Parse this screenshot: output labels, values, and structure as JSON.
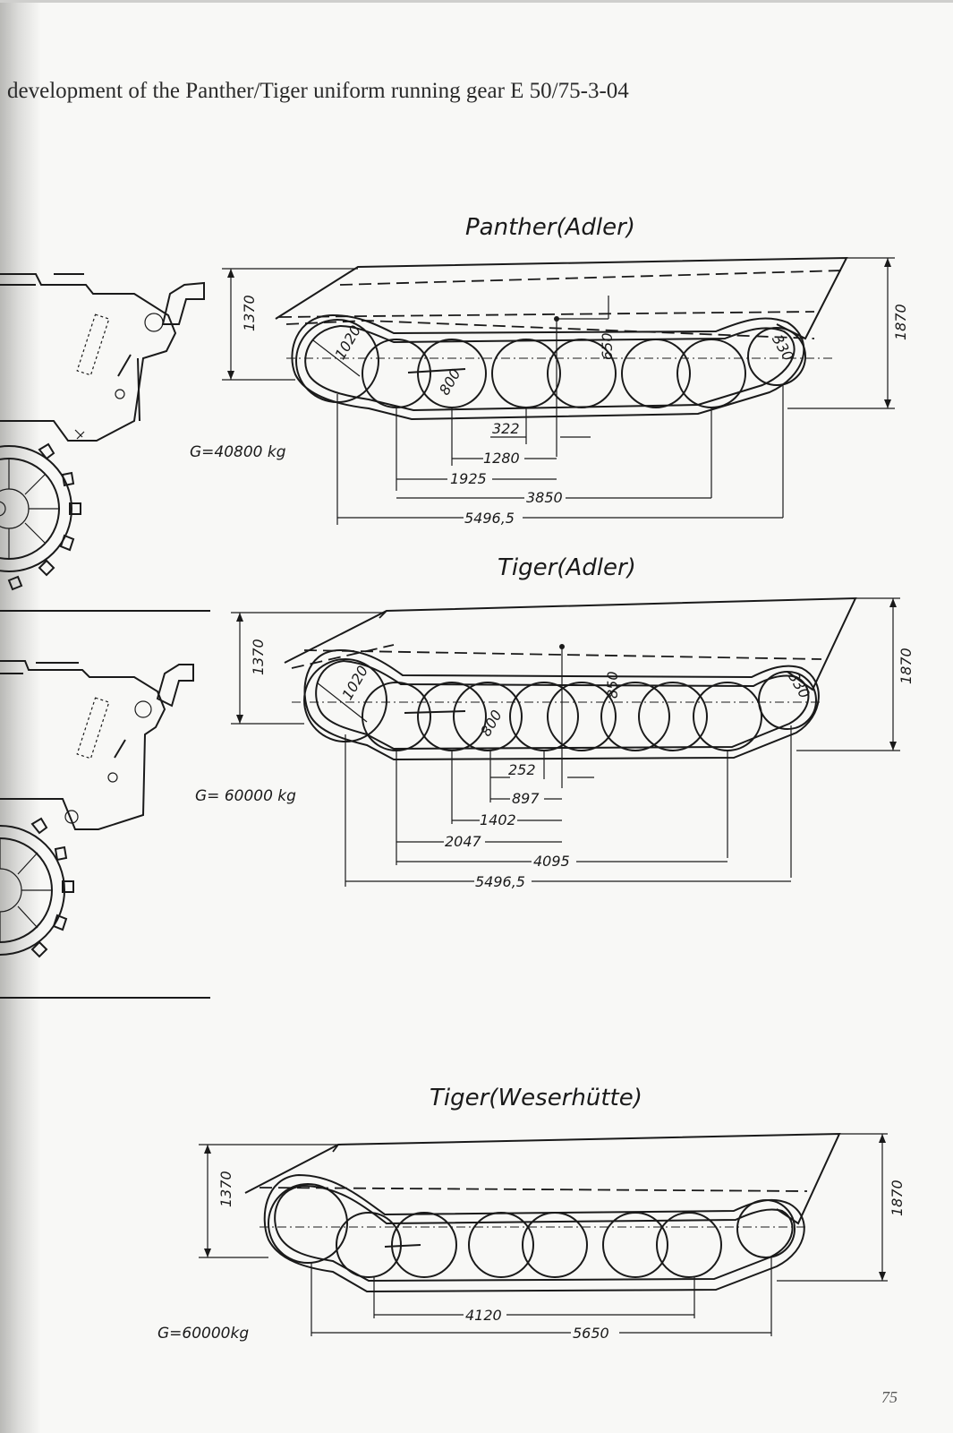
{
  "caption": "development of the Panther/Tiger uniform running gear E 50/75-3-04",
  "page_number": "75",
  "drawings": [
    {
      "title": "Panther(Adler)",
      "weight": "G=40800 kg",
      "height_front": "1370",
      "height_rear": "1870",
      "idler_dia": "1020",
      "wheel_dia": "800",
      "sprocket_dia": "330",
      "center_height": "650",
      "dims": [
        "322",
        "1280",
        "1925",
        "3850",
        "5496,5"
      ]
    },
    {
      "title": "Tiger(Adler)",
      "weight": "G= 60000 kg",
      "height_front": "1370",
      "height_rear": "1870",
      "idler_dia": "1020",
      "wheel_dia": "800",
      "sprocket_dia": "330",
      "center_height": "850",
      "dims": [
        "252",
        "897",
        "1402",
        "2047",
        "4095",
        "5496,5"
      ]
    },
    {
      "title": "Tiger(Weserhütte)",
      "weight": "G=60000kg",
      "height_front": "1370",
      "height_rear": "1870",
      "dims": [
        "4120",
        "5650"
      ]
    }
  ]
}
